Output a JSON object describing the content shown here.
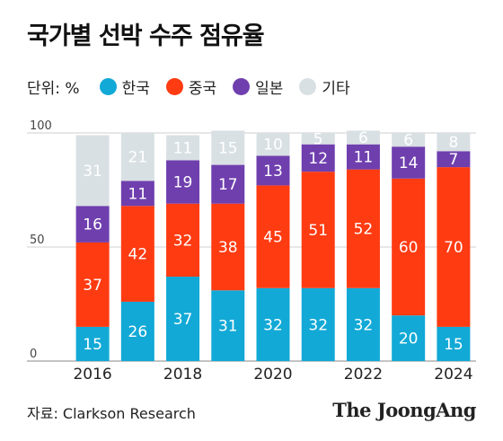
{
  "title": "국가별 선박 수주 점유율",
  "legend": {
    "unit": "단위: %",
    "items": [
      {
        "label": "한국",
        "color": "#12a9d6"
      },
      {
        "label": "중국",
        "color": "#ff3b12"
      },
      {
        "label": "일본",
        "color": "#6f3fae"
      },
      {
        "label": "기타",
        "color": "#d9e0e4"
      }
    ]
  },
  "source": "자료: Clarkson Research",
  "brand": "The JoongAng",
  "chart_data": {
    "type": "bar",
    "stacked": true,
    "title": "국가별 선박 수주 점유율",
    "ylabel": "",
    "xlabel": "",
    "ylim": [
      0,
      100
    ],
    "y_ticks": [
      "0",
      "50",
      "100"
    ],
    "categories": [
      "2016",
      "2017",
      "2018",
      "2019",
      "2020",
      "2021",
      "2022",
      "2023",
      "2024"
    ],
    "x_tick_labels": [
      "2016",
      "",
      "2018",
      "",
      "2020",
      "",
      "2022",
      "",
      "2024"
    ],
    "series": [
      {
        "name": "한국",
        "color": "#12a9d6",
        "values": [
          15,
          26,
          37,
          31,
          32,
          32,
          32,
          20,
          15
        ]
      },
      {
        "name": "중국",
        "color": "#ff3b12",
        "values": [
          37,
          42,
          32,
          38,
          45,
          51,
          52,
          60,
          70
        ]
      },
      {
        "name": "일본",
        "color": "#6f3fae",
        "values": [
          16,
          11,
          19,
          17,
          13,
          12,
          11,
          14,
          7
        ]
      },
      {
        "name": "기타",
        "color": "#d9e0e4",
        "values": [
          31,
          21,
          11,
          15,
          10,
          5,
          6,
          6,
          8
        ]
      }
    ]
  }
}
